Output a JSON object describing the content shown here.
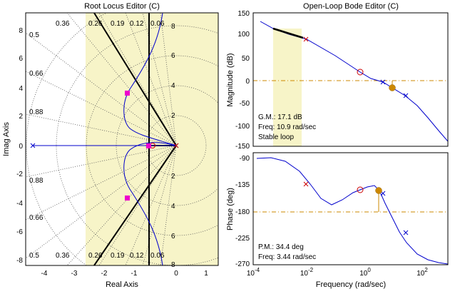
{
  "colors": {
    "pole_zero": "#cc0000",
    "locus": "#0000cc",
    "margin": "#cc8800",
    "shade": "#f7f4c8",
    "closed_loop_pole": "#ee00cc",
    "dot_marker": "#cc8800"
  },
  "root_locus": {
    "title": "Root Locus Editor (C)",
    "xlabel": "Real Axis",
    "ylabel": "Imag Axis",
    "xticks": [
      "-4",
      "-3",
      "-2",
      "-1",
      "0",
      "1"
    ],
    "yticks": [
      "8",
      "6",
      "4",
      "2",
      "0",
      "-2",
      "-4",
      "-6",
      "-8"
    ],
    "damping_top": [
      "0.36",
      "0.26",
      "0.19",
      "0.12",
      "0.06"
    ],
    "damping_bottom": [
      "0.36",
      "0.26",
      "0.19",
      "0.12",
      "0.06"
    ],
    "damping_left": [
      "0.5",
      "0.66",
      "0.88",
      "0.88",
      "0.66",
      "0.5"
    ],
    "wn_labels_top": [
      "8",
      "6",
      "4",
      "2"
    ],
    "wn_labels_bottom": [
      "2",
      "4",
      "6",
      "8"
    ]
  },
  "bode_mag": {
    "title": "Open-Loop Bode Editor (C)",
    "ylabel": "Magnitude (dB)",
    "yticks": [
      "150",
      "100",
      "50",
      "0",
      "-50",
      "-100",
      "-150"
    ],
    "gm": "G.M.: 17.1 dB",
    "gm_freq": "Freq: 10.9 rad/sec",
    "stable": "Stable loop"
  },
  "bode_phase": {
    "ylabel": "Phase (deg)",
    "yticks": [
      "-90",
      "-135",
      "-180",
      "-225",
      "-270"
    ],
    "pm": "P.M.: 34.4 deg",
    "pm_freq": "Freq: 3.44 rad/sec",
    "xlabel": "Frequency (rad/sec)",
    "xticks": [
      "-4",
      "-2",
      "0",
      "2"
    ],
    "xtick_base": "10"
  }
}
